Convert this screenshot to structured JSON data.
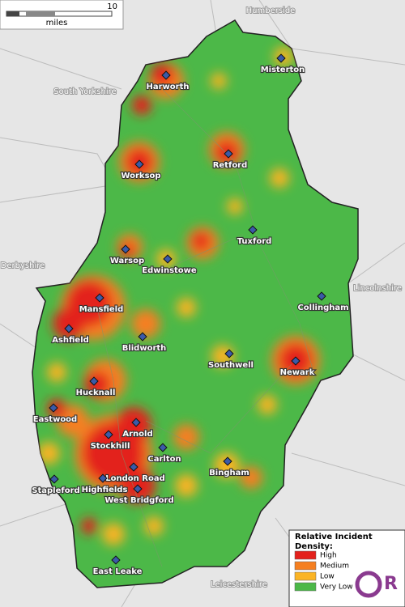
{
  "scale_bar": {
    "value_label": "10",
    "unit": "miles"
  },
  "regions": [
    "Humberside",
    "South Yorkshire",
    "Derbyshire",
    "Lincolnshire",
    "Leicestershire"
  ],
  "places": [
    "Harworth",
    "Misterton",
    "Retford",
    "Worksop",
    "Tuxford",
    "Warsop",
    "Edwinstowe",
    "Collingham",
    "Mansfield",
    "Ashfield",
    "Blidworth",
    "Southwell",
    "Newark",
    "Hucknall",
    "Eastwood",
    "Arnold",
    "Stockhill",
    "Carlton",
    "Bingham",
    "London Road",
    "Highfields",
    "Stapleford",
    "West Bridgford",
    "East Leake"
  ],
  "legend": {
    "title": "Relative Incident Density:",
    "items": [
      {
        "label": "High",
        "color": "#e3211c"
      },
      {
        "label": "Medium",
        "color": "#f57f20"
      },
      {
        "label": "Low",
        "color": "#fbb424"
      },
      {
        "label": "Very Low",
        "color": "#4cb848"
      }
    ]
  }
}
